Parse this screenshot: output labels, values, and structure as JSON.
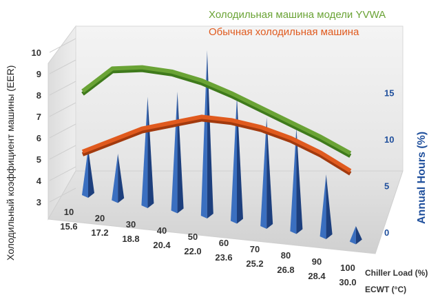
{
  "chart_data": {
    "type": "line",
    "subtype": "3d-line-with-cone-columns",
    "categories_load": [
      "10",
      "20",
      "30",
      "40",
      "50",
      "60",
      "70",
      "80",
      "90",
      "100"
    ],
    "categories_ecwt": [
      "15.6",
      "17.2",
      "18.8",
      "20.4",
      "22.0",
      "23.6",
      "25.2",
      "26.8",
      "28.4",
      "30.0"
    ],
    "xlabel_load": "Chiller Load (%)",
    "xlabel_ecwt": "ECWT (°C)",
    "ylabel_left": "Холодильный коэффициент машины (EER)",
    "ylabel_right": "Annual Hours (%)",
    "ylim_left": [
      3,
      10
    ],
    "yticks_left": [
      "3",
      "4",
      "5",
      "6",
      "7",
      "8",
      "9",
      "10"
    ],
    "ylim_right": [
      0,
      15
    ],
    "yticks_right": [
      "0",
      "5",
      "10",
      "15"
    ],
    "series": [
      {
        "name": "Холодильная машина модели YVWA",
        "kind": "line",
        "color": "#6aa335",
        "values": [
          8.1,
          9.3,
          9.35,
          9.1,
          8.6,
          7.9,
          7.1,
          6.3,
          5.5,
          4.6
        ]
      },
      {
        "name": "Обычная холодильная машина",
        "kind": "line",
        "color": "#e05a1e",
        "values": [
          5.0,
          5.6,
          6.2,
          6.5,
          6.8,
          6.6,
          6.2,
          5.6,
          4.8,
          3.8
        ]
      },
      {
        "kind": "cone",
        "axis": "right",
        "color": "#2e5fae",
        "values": [
          4.5,
          4.5,
          10.5,
          11.5,
          16,
          12,
          10.5,
          10,
          6,
          1.5
        ]
      }
    ],
    "legend_position": "top-right",
    "grid": true
  }
}
